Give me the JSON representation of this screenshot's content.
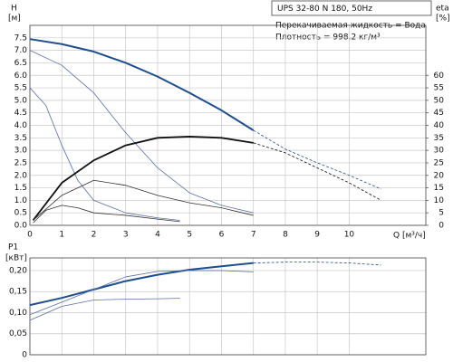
{
  "chart_data": [
    {
      "type": "line",
      "box_title": "UPS 32-80 N 180, 50Hz",
      "annotations": [
        "Перекачиваемая жидкость = Вода",
        "Плотность = 998.2 кг/м³"
      ],
      "y_label": "H",
      "y_unit": "[м]",
      "y2_label": "eta",
      "y2_unit": "[%]",
      "x_label": "Q [м³/ч]",
      "xlim": [
        0,
        12.4
      ],
      "xticks": [
        0,
        1,
        2,
        3,
        4,
        5,
        6,
        7,
        8,
        9,
        10
      ],
      "ylim": [
        0,
        8
      ],
      "yticks": [
        {
          "value": 0,
          "label": "0.0"
        },
        0.5,
        {
          "value": 1,
          "label": "1.0"
        },
        1.5,
        {
          "value": 2,
          "label": "2.0"
        },
        2.5,
        {
          "value": 3,
          "label": "3.0"
        },
        3.5,
        {
          "value": 4,
          "label": "4.0"
        },
        4.5,
        {
          "value": 5,
          "label": "5.0"
        },
        5.5,
        {
          "value": 6,
          "label": "6.0"
        },
        6.5,
        {
          "value": 7,
          "label": "7.0"
        },
        7.5
      ],
      "y2lim": [
        0,
        80
      ],
      "y2ticks": [
        0,
        5,
        10,
        15,
        20,
        25,
        30,
        35,
        40,
        45,
        50,
        55,
        60
      ],
      "grid": true,
      "series": [
        {
          "color": "#1f4e8c",
          "width": 2,
          "x": [
            0,
            1,
            2,
            3,
            4,
            5,
            6,
            7
          ],
          "values": [
            7.45,
            7.25,
            6.95,
            6.5,
            5.95,
            5.3,
            4.6,
            3.8
          ]
        },
        {
          "color": "#1f4e8c",
          "width": 0.8,
          "dashed": true,
          "x": [
            7,
            8,
            9,
            10,
            11
          ],
          "values": [
            3.8,
            3.05,
            2.5,
            2.0,
            1.45
          ]
        },
        {
          "color": "#5a6ea8",
          "width": 0.8,
          "x": [
            0,
            1,
            2,
            3,
            4,
            5,
            6,
            7
          ],
          "values": [
            7.0,
            6.4,
            5.3,
            3.7,
            2.3,
            1.3,
            0.8,
            0.5
          ]
        },
        {
          "color": "#5a6ea8",
          "width": 0.8,
          "x": [
            0,
            0.5,
            1,
            1.5,
            2,
            3,
            4,
            4.7
          ],
          "values": [
            5.5,
            4.8,
            3.2,
            1.8,
            1.0,
            0.5,
            0.3,
            0.2
          ]
        },
        {
          "color": "#111111",
          "width": 1.8,
          "axis": "y2",
          "x": [
            0.1,
            1,
            2,
            3,
            4,
            5,
            6,
            7
          ],
          "values": [
            2,
            17,
            26,
            32,
            35,
            35.5,
            35,
            33
          ]
        },
        {
          "color": "#111111",
          "width": 0.8,
          "dashed": true,
          "axis": "y2",
          "x": [
            7,
            8,
            9,
            10,
            11
          ],
          "values": [
            33,
            29,
            23,
            17,
            10
          ]
        },
        {
          "color": "#333333",
          "width": 0.8,
          "axis": "y2",
          "x": [
            0.1,
            1,
            2,
            3,
            4,
            5,
            6,
            7
          ],
          "values": [
            2,
            12,
            18,
            16,
            12,
            9,
            7,
            4
          ]
        },
        {
          "color": "#333333",
          "width": 0.8,
          "axis": "y2",
          "x": [
            0.1,
            0.5,
            1,
            1.5,
            2,
            3,
            4,
            4.7
          ],
          "values": [
            1,
            6,
            8,
            7,
            5,
            4,
            2.5,
            1.5
          ]
        }
      ]
    },
    {
      "type": "line",
      "y_label": "P1",
      "y_unit": "[кВт]",
      "xlim": [
        0,
        12.4
      ],
      "ylim": [
        0,
        0.23
      ],
      "yticks": [
        0,
        {
          "value": 0.05,
          "label": "0,05"
        },
        {
          "value": 0.1,
          "label": "0,10"
        },
        {
          "value": 0.15,
          "label": "0,15"
        },
        {
          "value": 0.2,
          "label": "0,20"
        }
      ],
      "grid": true,
      "series": [
        {
          "color": "#1f4e8c",
          "width": 2,
          "x": [
            0,
            1,
            2,
            3,
            4,
            5,
            6,
            7
          ],
          "values": [
            0.118,
            0.135,
            0.155,
            0.175,
            0.19,
            0.202,
            0.21,
            0.218
          ]
        },
        {
          "color": "#1f4e8c",
          "width": 0.8,
          "dashed": true,
          "x": [
            7,
            8,
            9,
            10,
            11
          ],
          "values": [
            0.218,
            0.22,
            0.22,
            0.218,
            0.213
          ]
        },
        {
          "color": "#5a6ea8",
          "width": 0.8,
          "x": [
            0,
            1,
            2,
            3,
            4,
            5,
            6,
            7
          ],
          "values": [
            0.095,
            0.125,
            0.155,
            0.185,
            0.198,
            0.2,
            0.2,
            0.197
          ]
        },
        {
          "color": "#5a6ea8",
          "width": 0.8,
          "x": [
            0,
            1,
            2,
            3,
            4,
            4.7
          ],
          "values": [
            0.082,
            0.115,
            0.13,
            0.132,
            0.133,
            0.134
          ]
        }
      ]
    }
  ]
}
